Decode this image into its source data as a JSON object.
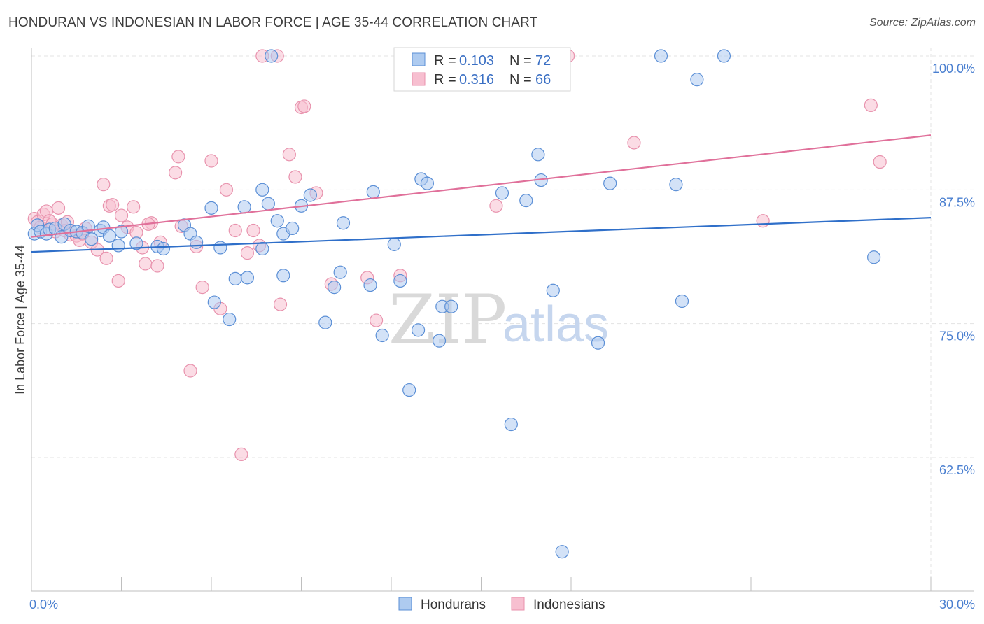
{
  "header": {
    "title": "HONDURAN VS INDONESIAN IN LABOR FORCE | AGE 35-44 CORRELATION CHART",
    "source": "Source: ZipAtlas.com"
  },
  "legend": {
    "r_label": "R =",
    "n_label": "N =",
    "rows": [
      {
        "series": "Hondurans",
        "r": "0.103",
        "n": "72"
      },
      {
        "series": "Indonesians",
        "r": "0.316",
        "n": "66"
      }
    ]
  },
  "watermark": {
    "zip": "ZIP",
    "atlas": "atlas"
  },
  "colors": {
    "honduran_fill": "#aecbf0",
    "honduran_stroke": "#5b8fd6",
    "honduran_line": "#2f6fc9",
    "indonesian_fill": "#f7bfd0",
    "indonesian_stroke": "#e892ad",
    "indonesian_line": "#e0709a",
    "tick_text": "#4a7fd0",
    "grid": "#e3e3e3"
  },
  "chart_data": {
    "type": "scatter",
    "title": "HONDURAN VS INDONESIAN IN LABOR FORCE | AGE 35-44 CORRELATION CHART",
    "xlabel": "",
    "ylabel": "In Labor Force | Age 35-44",
    "xlim": [
      0,
      30
    ],
    "ylim": [
      52,
      101
    ],
    "x_tick_labels": [
      "0.0%",
      "30.0%"
    ],
    "y_ticks": [
      {
        "value": 62.5,
        "label": "62.5%"
      },
      {
        "value": 75.0,
        "label": "75.0%"
      },
      {
        "value": 87.5,
        "label": "87.5%"
      },
      {
        "value": 100.0,
        "label": "100.0%"
      }
    ],
    "grid": true,
    "legend_position": "top-center",
    "series": [
      {
        "name": "Hondurans",
        "trend": {
          "x": [
            0,
            30
          ],
          "y": [
            81.7,
            84.9
          ]
        },
        "points": [
          [
            0.1,
            83.4
          ],
          [
            0.2,
            84.2
          ],
          [
            0.3,
            83.6
          ],
          [
            0.5,
            83.4
          ],
          [
            0.6,
            83.8
          ],
          [
            0.8,
            83.9
          ],
          [
            1.0,
            83.1
          ],
          [
            1.1,
            84.3
          ],
          [
            1.3,
            83.7
          ],
          [
            1.5,
            83.6
          ],
          [
            1.7,
            83.5
          ],
          [
            2.3,
            83.7
          ],
          [
            2.4,
            84.0
          ],
          [
            2.6,
            83.2
          ],
          [
            2.9,
            82.3
          ],
          [
            3.0,
            83.6
          ],
          [
            3.5,
            82.5
          ],
          [
            4.2,
            82.2
          ],
          [
            4.4,
            82.0
          ],
          [
            5.1,
            84.2
          ],
          [
            5.3,
            83.4
          ],
          [
            5.5,
            82.6
          ],
          [
            6.0,
            85.8
          ],
          [
            6.3,
            82.1
          ],
          [
            6.1,
            77.0
          ],
          [
            6.6,
            75.4
          ],
          [
            6.8,
            79.2
          ],
          [
            7.2,
            79.3
          ],
          [
            7.1,
            85.9
          ],
          [
            7.7,
            87.5
          ],
          [
            7.7,
            82.0
          ],
          [
            7.9,
            86.2
          ],
          [
            8.2,
            84.6
          ],
          [
            8.4,
            79.5
          ],
          [
            8.4,
            83.4
          ],
          [
            8.7,
            83.9
          ],
          [
            9.0,
            86.0
          ],
          [
            9.3,
            87.0
          ],
          [
            9.8,
            75.1
          ],
          [
            10.1,
            78.4
          ],
          [
            10.3,
            79.8
          ],
          [
            10.4,
            84.4
          ],
          [
            11.4,
            87.3
          ],
          [
            11.3,
            78.6
          ],
          [
            11.7,
            73.9
          ],
          [
            12.1,
            82.4
          ],
          [
            12.3,
            79.0
          ],
          [
            12.6,
            68.8
          ],
          [
            12.9,
            74.4
          ],
          [
            13.0,
            88.5
          ],
          [
            13.2,
            88.1
          ],
          [
            13.6,
            73.4
          ],
          [
            13.7,
            76.6
          ],
          [
            14.0,
            76.6
          ],
          [
            15.7,
            87.2
          ],
          [
            16.0,
            65.6
          ],
          [
            16.5,
            86.5
          ],
          [
            16.9,
            90.8
          ],
          [
            17.0,
            88.4
          ],
          [
            17.4,
            78.1
          ],
          [
            17.7,
            53.7
          ],
          [
            18.9,
            73.2
          ],
          [
            19.3,
            88.1
          ],
          [
            21.0,
            100.0
          ],
          [
            21.5,
            88.0
          ],
          [
            21.7,
            77.1
          ],
          [
            22.2,
            97.8
          ],
          [
            23.1,
            100.0
          ],
          [
            28.1,
            81.2
          ],
          [
            8.0,
            100.0
          ],
          [
            1.9,
            84.1
          ],
          [
            2.0,
            82.9
          ]
        ]
      },
      {
        "name": "Indonesians",
        "trend": {
          "x": [
            0,
            30
          ],
          "y": [
            83.1,
            92.6
          ]
        },
        "points": [
          [
            0.1,
            84.8
          ],
          [
            0.2,
            84.5
          ],
          [
            0.3,
            84.0
          ],
          [
            0.4,
            85.2
          ],
          [
            0.5,
            85.5
          ],
          [
            0.6,
            84.6
          ],
          [
            0.7,
            84.3
          ],
          [
            0.8,
            83.6
          ],
          [
            0.9,
            85.8
          ],
          [
            1.0,
            84.2
          ],
          [
            1.1,
            83.7
          ],
          [
            1.3,
            83.3
          ],
          [
            1.5,
            83.2
          ],
          [
            1.6,
            82.8
          ],
          [
            1.7,
            83.4
          ],
          [
            1.8,
            83.9
          ],
          [
            2.0,
            82.6
          ],
          [
            2.2,
            81.9
          ],
          [
            2.4,
            88.0
          ],
          [
            2.5,
            81.1
          ],
          [
            2.6,
            86.0
          ],
          [
            2.7,
            86.1
          ],
          [
            2.9,
            79.0
          ],
          [
            3.0,
            85.1
          ],
          [
            3.2,
            84.0
          ],
          [
            3.4,
            85.9
          ],
          [
            3.5,
            83.5
          ],
          [
            3.7,
            82.1
          ],
          [
            3.8,
            80.6
          ],
          [
            4.0,
            84.4
          ],
          [
            4.2,
            80.4
          ],
          [
            4.3,
            82.6
          ],
          [
            4.8,
            89.1
          ],
          [
            4.9,
            90.6
          ],
          [
            5.0,
            84.1
          ],
          [
            5.5,
            82.2
          ],
          [
            5.7,
            78.4
          ],
          [
            6.0,
            90.2
          ],
          [
            6.3,
            76.4
          ],
          [
            6.5,
            87.5
          ],
          [
            6.8,
            83.7
          ],
          [
            7.0,
            62.8
          ],
          [
            7.2,
            81.6
          ],
          [
            7.4,
            83.7
          ],
          [
            7.6,
            82.3
          ],
          [
            7.7,
            100.0
          ],
          [
            8.2,
            100.0
          ],
          [
            8.3,
            76.8
          ],
          [
            8.6,
            90.8
          ],
          [
            8.8,
            88.7
          ],
          [
            9.0,
            95.2
          ],
          [
            9.1,
            95.3
          ],
          [
            9.5,
            87.2
          ],
          [
            10.0,
            78.7
          ],
          [
            11.2,
            79.3
          ],
          [
            11.5,
            75.3
          ],
          [
            12.3,
            79.5
          ],
          [
            15.5,
            86.0
          ],
          [
            17.9,
            100.0
          ],
          [
            20.1,
            91.9
          ],
          [
            24.4,
            84.6
          ],
          [
            28.0,
            95.4
          ],
          [
            28.3,
            90.1
          ],
          [
            5.3,
            70.6
          ],
          [
            1.2,
            84.5
          ],
          [
            3.9,
            84.3
          ]
        ]
      }
    ]
  }
}
